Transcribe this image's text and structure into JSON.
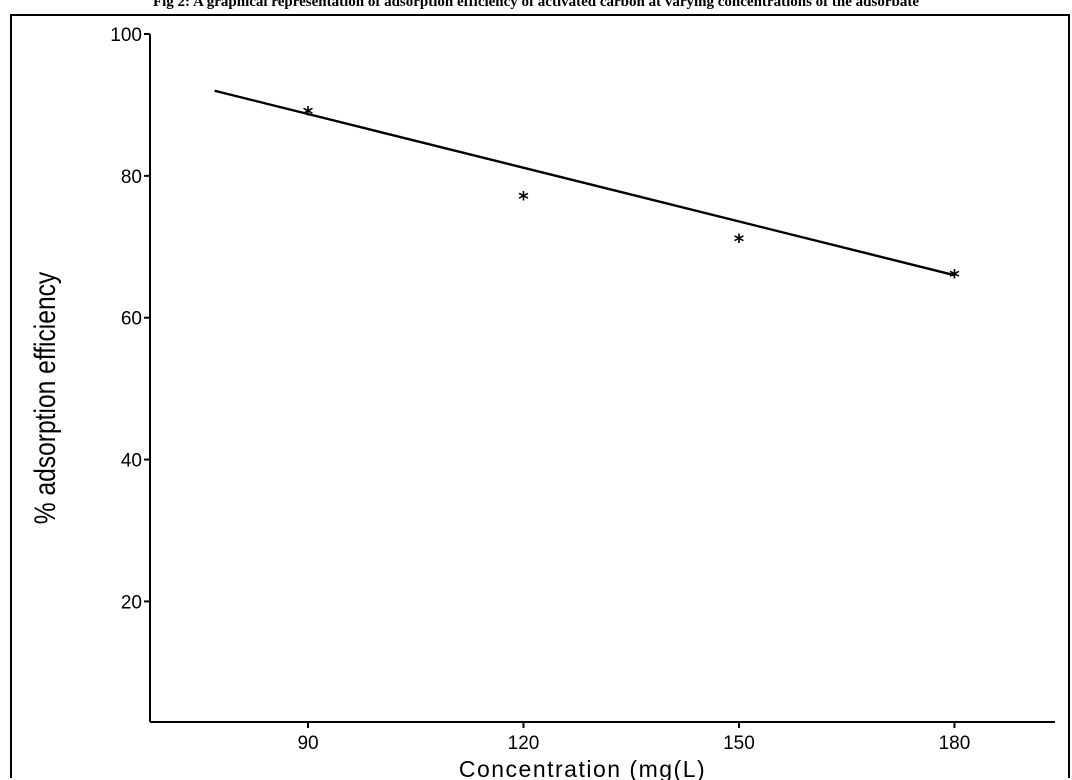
{
  "caption": "Fig 2: A graphical representation of adsorption efficiency of activated carbon at varying concentrations of the adsorbate",
  "chart_data": {
    "type": "scatter",
    "title": "",
    "xlabel": "Concentration (mg(L)",
    "ylabel": "% adsorption efficiency",
    "x": [
      90,
      120,
      150,
      180
    ],
    "y": [
      89,
      77,
      71,
      66
    ],
    "trendline": {
      "x": [
        77,
        180
      ],
      "y": [
        92,
        66
      ]
    },
    "xticks": [
      90,
      120,
      150,
      180
    ],
    "yticks": [
      20,
      40,
      60,
      80,
      100
    ],
    "xlim": [
      68,
      194
    ],
    "ylim": [
      3,
      100
    ],
    "grid": false,
    "marker": "*",
    "colors": {
      "line": "#000000",
      "marker": "#000000"
    }
  }
}
